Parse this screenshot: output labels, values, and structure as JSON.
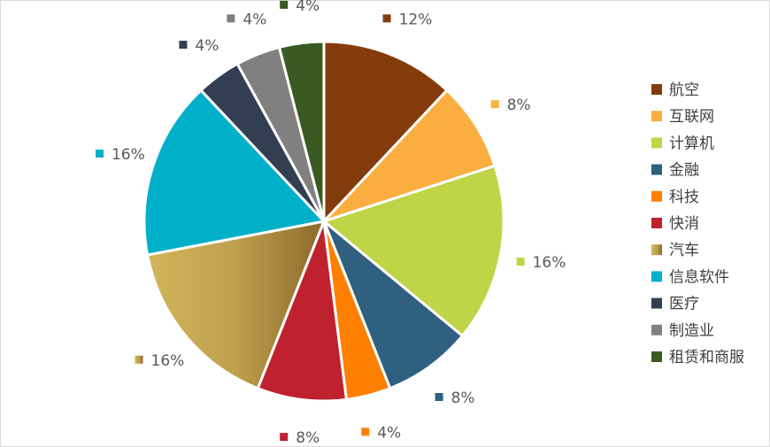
{
  "chart_data": {
    "type": "pie",
    "title": "",
    "legend_position": "right",
    "slices": [
      {
        "name": "航空",
        "value": 12,
        "label": "12%",
        "color": "#843C0C"
      },
      {
        "name": "互联网",
        "value": 8,
        "label": "8%",
        "color": "#FBAE40"
      },
      {
        "name": "计算机",
        "value": 16,
        "label": "16%",
        "color": "#BFD446"
      },
      {
        "name": "金融",
        "value": 8,
        "label": "8%",
        "color": "#2F6080"
      },
      {
        "name": "科技",
        "value": 4,
        "label": "4%",
        "color": "#FF7F00"
      },
      {
        "name": "快消",
        "value": 8,
        "label": "8%",
        "color": "#C0212F"
      },
      {
        "name": "汽车",
        "value": 16,
        "label": "16%",
        "color": "#B89A45",
        "gradient": [
          "#D2B55C",
          "#BFA04E",
          "#8A6A2A"
        ]
      },
      {
        "name": "信息软件",
        "value": 16,
        "label": "16%",
        "color": "#00B0C8"
      },
      {
        "name": "医疗",
        "value": 4,
        "label": "4%",
        "color": "#323E52"
      },
      {
        "name": "制造业",
        "value": 4,
        "label": "4%",
        "color": "#808080"
      },
      {
        "name": "租赁和商服",
        "value": 4,
        "label": "4%",
        "color": "#3A5A22"
      }
    ]
  }
}
